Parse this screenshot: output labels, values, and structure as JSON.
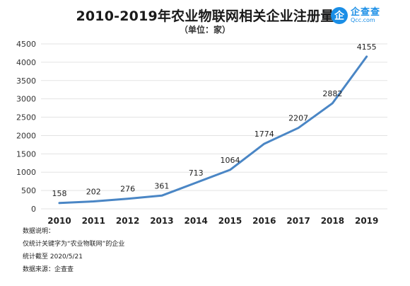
{
  "title": "2010-2019年农业物联网相关企业注册量",
  "subtitle": "（单位：家）",
  "brand": {
    "cn": "企查查",
    "en": "Qcc.com",
    "mark": "企",
    "color": "#1a8ee6"
  },
  "notes": [
    "数据说明：",
    "仅统计关键字为“农业物联网”的企业",
    "统计截至 2020/5/21",
    "数据来源：企查查"
  ],
  "chart_data": {
    "type": "line",
    "title": "2010-2019年农业物联网相关企业注册量",
    "subtitle": "（单位：家）",
    "categories": [
      "2010",
      "2011",
      "2012",
      "2013",
      "2014",
      "2015",
      "2016",
      "2017",
      "2018",
      "2019"
    ],
    "series": [
      {
        "values": [
          158,
          202,
          276,
          361,
          713,
          1064,
          1774,
          2207,
          2882,
          4155
        ],
        "color": "#4a86c5"
      }
    ],
    "data_labels": [
      "158",
      "202",
      "276",
      "361",
      "713",
      "1064",
      "1774",
      "2207",
      "2882",
      "4155"
    ],
    "ylim": [
      0,
      4500
    ],
    "yticks": [
      0,
      500,
      1000,
      1500,
      2000,
      2500,
      3000,
      3500,
      4000,
      4500
    ],
    "grid": true,
    "legend": "none"
  }
}
